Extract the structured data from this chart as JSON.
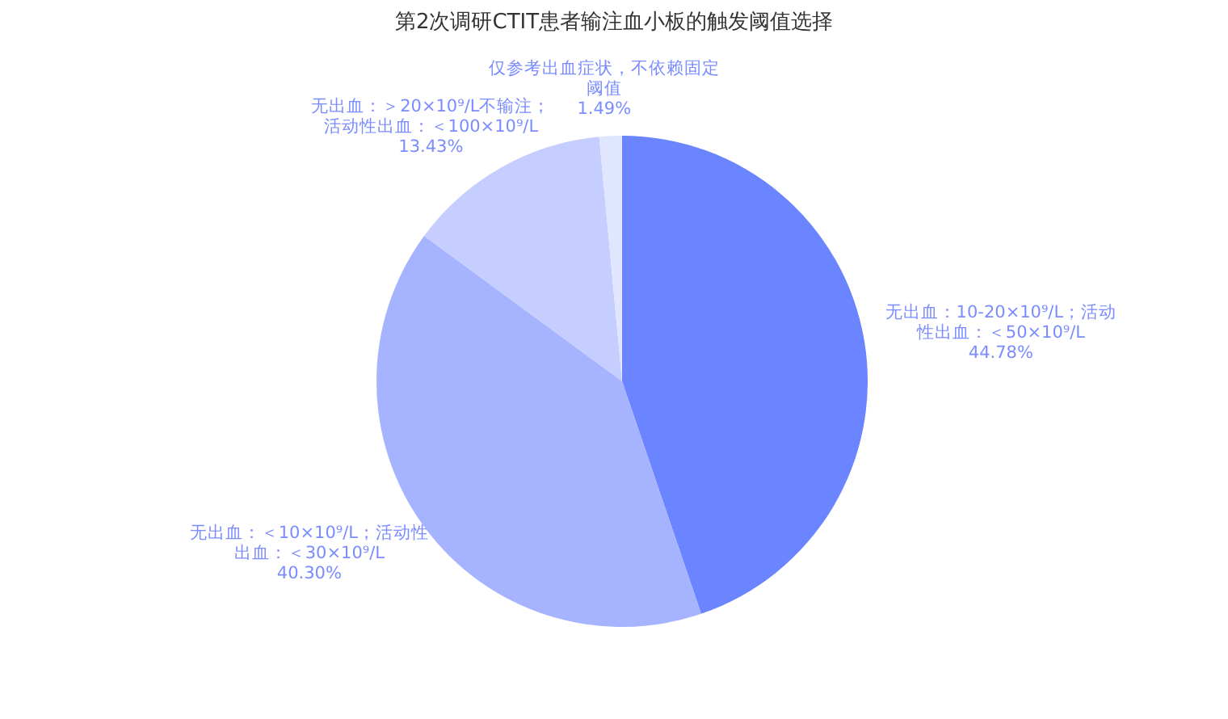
{
  "chart_data": {
    "type": "pie",
    "title": "第2次调研CTIT患者输注血小板的触发阈值选择",
    "categories": [
      "无出血：10-20×10⁹/L；活动性出血：＜50×10⁹/L",
      "无出血：＜10×10⁹/L；活动性出血：＜30×10⁹/L",
      "无出血：＞20×10⁹/L不输注；活动性出血：＜100×10⁹/L",
      "仅参考出血症状，不依赖固定阈值"
    ],
    "values": [
      44.78,
      40.3,
      13.43,
      1.49
    ],
    "value_labels": [
      "44.78%",
      "40.30%",
      "13.43%",
      "1.49%"
    ],
    "colors": [
      "#6b84ff",
      "#a6b4ff",
      "#c6cdff",
      "#e1e6ff"
    ],
    "legend": false
  }
}
